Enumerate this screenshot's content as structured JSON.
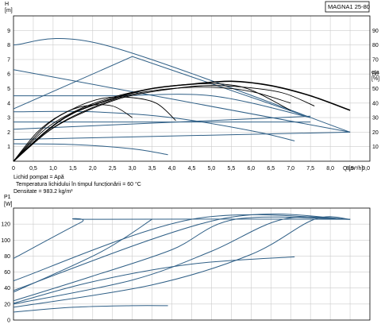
{
  "model_label": "MAGNA1 25-80",
  "colors": {
    "blue": "#2f5f86",
    "black": "#000000",
    "grid": "#cccccc"
  },
  "chart_data": [
    {
      "type": "line",
      "name": "qh",
      "y_axis_label_top": "H",
      "y_axis_unit": "[m]",
      "y2_axis_label_top": "eta",
      "y2_axis_unit": "[%]",
      "x_axis_label": "Q [m³/h]",
      "xlim": [
        0,
        9
      ],
      "ylim": [
        0,
        10
      ],
      "y2lim": [
        0,
        100
      ],
      "x_ticks": [
        "0",
        "0,5",
        "1,0",
        "1,5",
        "2,0",
        "2,5",
        "3,0",
        "3,5",
        "4,0",
        "4,5",
        "5,0",
        "5,5",
        "6,0",
        "6,5",
        "7,0",
        "7,5",
        "8,0",
        "8,5",
        "9,0"
      ],
      "y_ticks": [
        "1",
        "2",
        "3",
        "4",
        "5",
        "6",
        "7",
        "8",
        "9"
      ],
      "y2_ticks": [
        "10",
        "20",
        "30",
        "40",
        "50",
        "60",
        "70",
        "80",
        "90"
      ],
      "grid": true,
      "notes": [
        "Lichid pompat = Apă",
        "Temperatura lichidului în timpul funcționării = 60  °C",
        "Densitate = 983.2  kg/m³"
      ],
      "pump_curves": [
        {
          "x": [
            0,
            2.3,
            8.5
          ],
          "y": [
            8.0,
            8.0,
            2.0
          ]
        },
        {
          "x": [
            0,
            8.5
          ],
          "y": [
            6.3,
            2.0
          ]
        },
        {
          "x": [
            0,
            2.5,
            5,
            7.5
          ],
          "y": [
            4.5,
            4.5,
            4.5,
            3.0
          ]
        },
        {
          "x": [
            0,
            2,
            4,
            6,
            7.1
          ],
          "y": [
            3.4,
            3.4,
            3.0,
            2.1,
            1.4
          ]
        },
        {
          "x": [
            0,
            1.5,
            3,
            3.9
          ],
          "y": [
            1.2,
            1.15,
            0.85,
            0.45
          ]
        },
        {
          "x": [
            0,
            7.5
          ],
          "y": [
            2.7,
            2.7
          ]
        }
      ],
      "system_curves": [
        {
          "x": [
            0,
            3.0,
            7.5
          ],
          "y": [
            3.6,
            7.2,
            3.0
          ]
        },
        {
          "x": [
            0,
            7.5
          ],
          "y": [
            2.2,
            3.1
          ]
        },
        {
          "x": [
            0,
            8.5
          ],
          "y": [
            1.5,
            2.0
          ]
        }
      ],
      "efficiency_curves": [
        {
          "x": [
            0,
            0.8,
            1.5,
            2.5,
            3.5,
            4.5,
            5.5,
            6.5,
            7.5,
            8.5
          ],
          "y": [
            0,
            20,
            33,
            43,
            50,
            53,
            55,
            52,
            45,
            35
          ]
        },
        {
          "x": [
            0,
            0.8,
            1.6,
            2.5,
            3.5,
            4.5,
            5.3,
            6.0,
            7.0
          ],
          "y": [
            0,
            22,
            35,
            44,
            50,
            53,
            53,
            49,
            35
          ]
        },
        {
          "x": [
            0,
            0.9,
            1.8,
            2.8,
            3.8,
            4.8,
            5.8,
            6.8,
            7.6
          ],
          "y": [
            0,
            21,
            34,
            44,
            49,
            52,
            51,
            47,
            38
          ]
        },
        {
          "x": [
            0,
            0.8,
            1.5,
            2.2,
            2.9,
            3.6,
            4.1
          ],
          "y": [
            0,
            24,
            36,
            43,
            44,
            40,
            28
          ]
        },
        {
          "x": [
            0,
            0.6,
            1.2,
            1.8,
            2.5,
            3.0
          ],
          "y": [
            0,
            20,
            32,
            38,
            38,
            30
          ]
        },
        {
          "x": [
            0,
            1.0,
            2.0,
            3.0,
            4.0,
            5.0,
            6.0,
            7.0
          ],
          "y": [
            0,
            23,
            37,
            46,
            50,
            51,
            48,
            40
          ]
        }
      ]
    },
    {
      "type": "line",
      "name": "power",
      "y_axis_label_top": "P1",
      "y_axis_unit": "[W]",
      "xlim": [
        0,
        9
      ],
      "ylim": [
        0,
        140
      ],
      "y_ticks": [
        "0",
        "20",
        "40",
        "60",
        "80",
        "100",
        "120"
      ],
      "grid": true,
      "power_curves": [
        {
          "x": [
            0,
            1.7,
            2.0,
            8.5
          ],
          "y": [
            77,
            122,
            126,
            126
          ]
        },
        {
          "x": [
            0,
            4.5,
            8.5
          ],
          "y": [
            49,
            126,
            126
          ]
        },
        {
          "x": [
            0,
            5.2,
            8.5
          ],
          "y": [
            37,
            126,
            126
          ]
        },
        {
          "x": [
            0,
            2.0,
            4.0,
            5.6,
            8.5
          ],
          "y": [
            24,
            55,
            88,
            126,
            126
          ]
        },
        {
          "x": [
            0,
            3.0,
            5.0,
            6.8,
            8.5
          ],
          "y": [
            20,
            50,
            86,
            126,
            126
          ]
        },
        {
          "x": [
            0,
            3.5,
            6.0,
            7.6,
            8.5
          ],
          "y": [
            16,
            44,
            82,
            126,
            126
          ]
        },
        {
          "x": [
            0,
            2.0,
            4.5,
            7.1
          ],
          "y": [
            21,
            48,
            70,
            79
          ]
        },
        {
          "x": [
            0,
            1.5,
            3.0,
            3.9
          ],
          "y": [
            10,
            16,
            18,
            18
          ]
        },
        {
          "x": [
            0,
            2.2,
            3.5
          ],
          "y": [
            35,
            85,
            126
          ]
        }
      ]
    }
  ]
}
